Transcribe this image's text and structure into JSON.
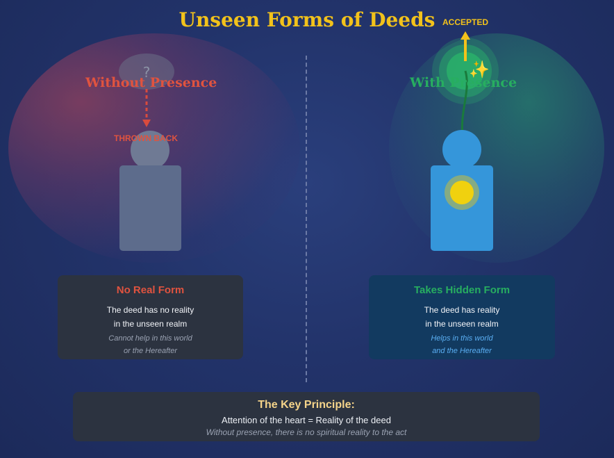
{
  "title": "Unseen Forms of Deeds",
  "left": {
    "heading": "Without Presence",
    "question_mark": "?",
    "arrow_label": "THROWN BACK",
    "card_title": "No Real Form",
    "card_line1": "The deed has no reality",
    "card_line2": "in the unseen realm",
    "card_note1": "Cannot help in this world",
    "card_note2": "or the Hereafter",
    "figure_color": "#5d6c8c",
    "accent": "#e0533f"
  },
  "right": {
    "heading": "With Presence",
    "arrow_label": "ACCEPTED",
    "sparkle": "✨",
    "card_title": "Takes Hidden Form",
    "card_line1": "The deed has reality",
    "card_line2": "in the unseen realm",
    "card_note1": "Helps in this world",
    "card_note2": "and the Hereafter",
    "figure_color": "#3596da",
    "accent": "#27ae60"
  },
  "principle": {
    "title": "The Key Principle:",
    "line": "Attention of the heart = Reality of the deed",
    "note": "Without presence, there is no spiritual reality to the act"
  }
}
